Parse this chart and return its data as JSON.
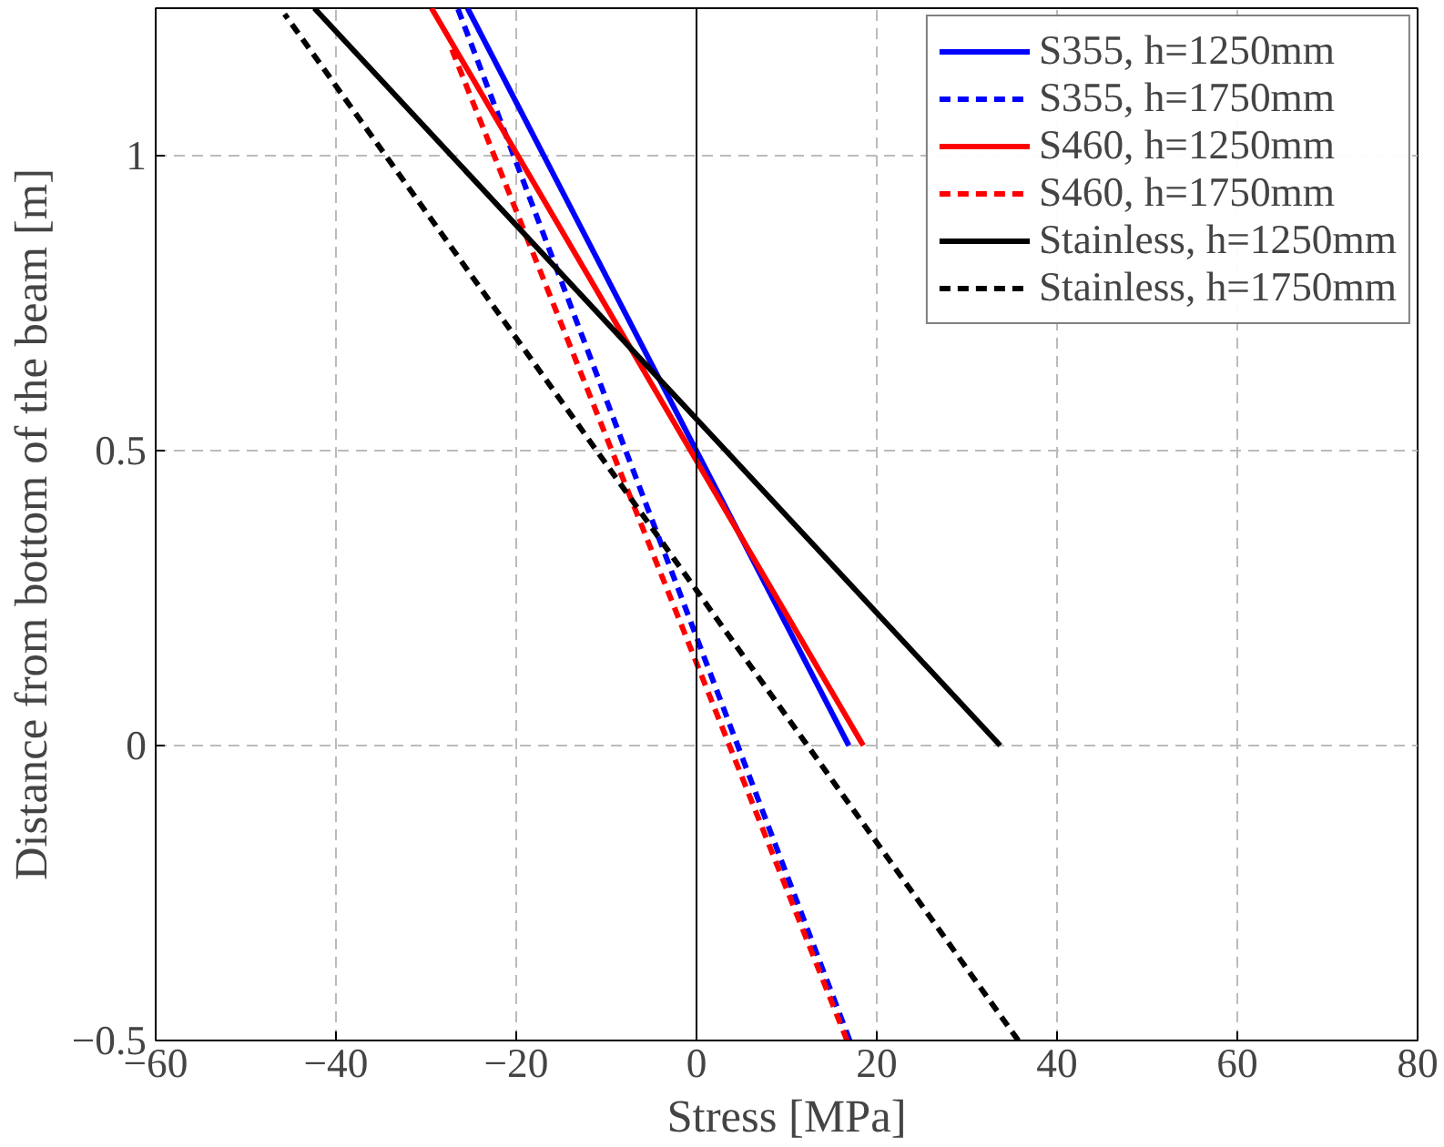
{
  "chart_data": {
    "type": "line",
    "xlabel": "Stress [MPa]",
    "ylabel": "Distance from bottom of the beam [m]",
    "xlim": [
      -60,
      80
    ],
    "ylim": [
      -0.5,
      1.25
    ],
    "xticks": [
      {
        "value": -60,
        "label": "−60"
      },
      {
        "value": -40,
        "label": "−40"
      },
      {
        "value": -20,
        "label": "−20"
      },
      0,
      20,
      40,
      60,
      80
    ],
    "yticks": [
      {
        "value": -0.5,
        "label": "−0.5"
      },
      0,
      0.5,
      1
    ],
    "grid": true,
    "legend": "top right",
    "marker": "none",
    "ref_lines": [
      {
        "axis": "x",
        "value": 0,
        "label": null,
        "color": "#000000",
        "line_style": "solid"
      }
    ],
    "series": [
      {
        "name": "S355, h=1250mm",
        "color": "#0000ff",
        "line_style": "solid",
        "x": [
          16.9,
          -25.4
        ],
        "values": [
          0,
          1.25
        ]
      },
      {
        "name": "S355, h=1750mm",
        "color": "#0000ff",
        "line_style": "dashed",
        "x": [
          17.0,
          -26.5
        ],
        "values": [
          -0.5,
          1.25
        ]
      },
      {
        "name": "S460, h=1250mm",
        "color": "#ff0000",
        "line_style": "solid",
        "x": [
          18.5,
          -29.4
        ],
        "values": [
          0,
          1.25
        ]
      },
      {
        "name": "S460, h=1750mm",
        "color": "#ff0000",
        "line_style": "dashed",
        "x": [
          16.7,
          -27.4
        ],
        "values": [
          -0.5,
          1.19
        ]
      },
      {
        "name": "Stainless, h=1250mm",
        "color": "#000000",
        "line_style": "solid",
        "x": [
          33.7,
          -42.4
        ],
        "values": [
          0,
          1.25
        ]
      },
      {
        "name": "Stainless, h=1750mm",
        "color": "#000000",
        "line_style": "dashed",
        "x": [
          35.7,
          -45.7
        ],
        "values": [
          -0.5,
          1.24
        ]
      }
    ]
  }
}
